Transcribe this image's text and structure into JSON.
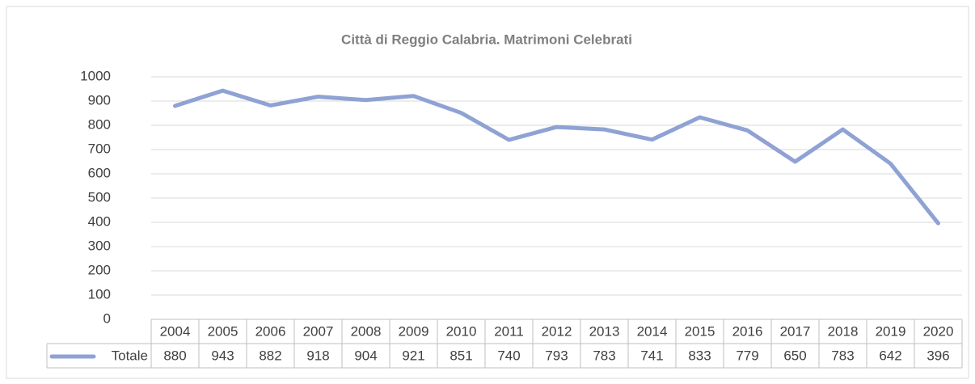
{
  "chart_data": {
    "type": "line",
    "title": "Città di Reggio Calabria. Matrimoni Celebrati",
    "categories": [
      "2004",
      "2005",
      "2006",
      "2007",
      "2008",
      "2009",
      "2010",
      "2011",
      "2012",
      "2013",
      "2014",
      "2015",
      "2016",
      "2017",
      "2018",
      "2019",
      "2020"
    ],
    "series": [
      {
        "name": "Totale",
        "color": "#8fa2d4",
        "values": [
          880,
          943,
          882,
          918,
          904,
          921,
          851,
          740,
          793,
          783,
          741,
          833,
          779,
          650,
          783,
          642,
          396
        ]
      }
    ],
    "ylim": [
      0,
      1000
    ],
    "yticks": [
      0,
      100,
      200,
      300,
      400,
      500,
      600,
      700,
      800,
      900,
      1000
    ],
    "grid": true,
    "data_table": true
  }
}
